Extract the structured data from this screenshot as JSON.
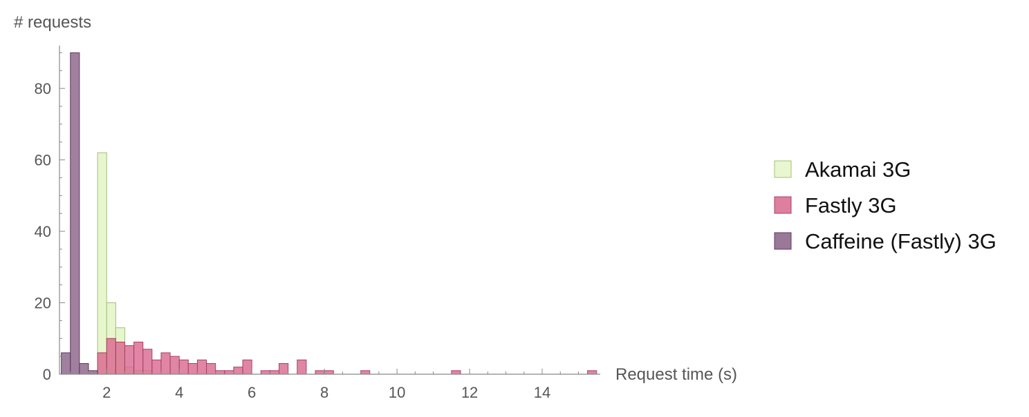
{
  "chart_data": {
    "type": "bar",
    "subtype": "overlapping histogram",
    "ylabel": "# requests",
    "xlabel": "Request time (s)",
    "xlim": [
      0.7,
      15.6
    ],
    "ylim": [
      0,
      92
    ],
    "bin_width": 0.25,
    "x_ticks": [
      2,
      4,
      6,
      8,
      10,
      12,
      14
    ],
    "y_ticks": [
      0,
      20,
      40,
      60,
      80
    ],
    "legend_position": "right",
    "series": [
      {
        "name": "Akamai 3G",
        "color": "#e6f5c8",
        "stroke": "#9fbf7a",
        "bins": [
          {
            "x": 1.75,
            "y": 62
          },
          {
            "x": 2.0,
            "y": 20
          },
          {
            "x": 2.25,
            "y": 13
          },
          {
            "x": 2.5,
            "y": 2
          },
          {
            "x": 2.75,
            "y": 1
          },
          {
            "x": 3.0,
            "y": 1
          }
        ]
      },
      {
        "name": "Fastly 3G",
        "color": "#d8678f",
        "stroke": "#a8405f",
        "bins": [
          {
            "x": 1.75,
            "y": 6
          },
          {
            "x": 2.0,
            "y": 10
          },
          {
            "x": 2.25,
            "y": 9
          },
          {
            "x": 2.5,
            "y": 8
          },
          {
            "x": 2.75,
            "y": 9
          },
          {
            "x": 3.0,
            "y": 7
          },
          {
            "x": 3.25,
            "y": 4
          },
          {
            "x": 3.5,
            "y": 6
          },
          {
            "x": 3.75,
            "y": 5
          },
          {
            "x": 4.0,
            "y": 4
          },
          {
            "x": 4.25,
            "y": 3
          },
          {
            "x": 4.5,
            "y": 4
          },
          {
            "x": 4.75,
            "y": 3
          },
          {
            "x": 5.0,
            "y": 1
          },
          {
            "x": 5.25,
            "y": 1
          },
          {
            "x": 5.5,
            "y": 2
          },
          {
            "x": 5.75,
            "y": 4
          },
          {
            "x": 6.25,
            "y": 1
          },
          {
            "x": 6.5,
            "y": 1
          },
          {
            "x": 6.75,
            "y": 3
          },
          {
            "x": 7.25,
            "y": 4
          },
          {
            "x": 7.75,
            "y": 1
          },
          {
            "x": 8.0,
            "y": 1
          },
          {
            "x": 9.0,
            "y": 1
          },
          {
            "x": 11.5,
            "y": 1
          },
          {
            "x": 15.25,
            "y": 1
          }
        ]
      },
      {
        "name": "Caffeine (Fastly) 3G",
        "color": "#8a5f86",
        "stroke": "#5e3b5b",
        "bins": [
          {
            "x": 0.75,
            "y": 6
          },
          {
            "x": 1.0,
            "y": 90
          },
          {
            "x": 1.25,
            "y": 3
          },
          {
            "x": 1.5,
            "y": 1
          }
        ]
      }
    ]
  }
}
